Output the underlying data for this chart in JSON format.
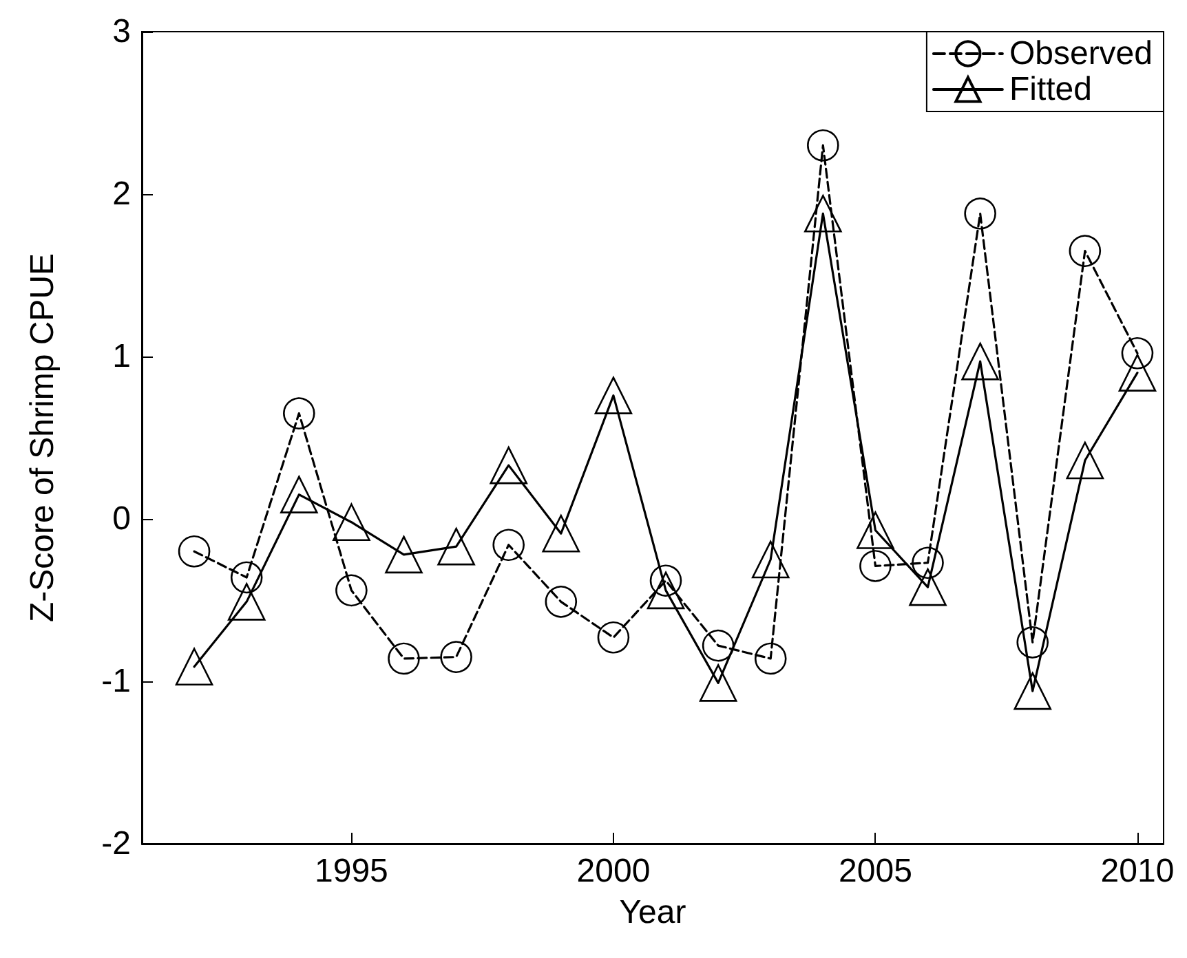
{
  "chart_data": {
    "type": "line",
    "xlabel": "Year",
    "ylabel": "Z-Score of Shrimp CPUE",
    "x": [
      1992,
      1993,
      1994,
      1995,
      1996,
      1997,
      1998,
      1999,
      2000,
      2001,
      2002,
      2003,
      2004,
      2005,
      2006,
      2007,
      2008,
      2009,
      2010
    ],
    "series": [
      {
        "name": "Observed",
        "color": "#000000",
        "marker": "circle",
        "line_style": "dashed",
        "values": [
          -0.2,
          -0.36,
          0.65,
          -0.44,
          -0.86,
          -0.85,
          -0.16,
          -0.51,
          -0.73,
          -0.38,
          -0.78,
          -0.86,
          2.3,
          -0.29,
          -0.27,
          1.88,
          -0.76,
          1.65,
          1.02
        ]
      },
      {
        "name": "Fitted",
        "color": "#000000",
        "marker": "triangle",
        "line_style": "solid",
        "values": [
          -0.91,
          -0.51,
          0.15,
          -0.02,
          -0.22,
          -0.17,
          0.33,
          -0.09,
          0.76,
          -0.44,
          -1.01,
          -0.25,
          1.88,
          -0.07,
          -0.42,
          0.97,
          -1.06,
          0.36,
          0.9
        ]
      }
    ],
    "xlim": [
      1991,
      2010.5
    ],
    "xticks": [
      1995,
      2000,
      2005,
      2010
    ],
    "ylim": [
      -2,
      3
    ],
    "yticks": [
      -2,
      -1,
      0,
      1,
      2,
      3
    ],
    "grid": false,
    "legend": "top right"
  }
}
